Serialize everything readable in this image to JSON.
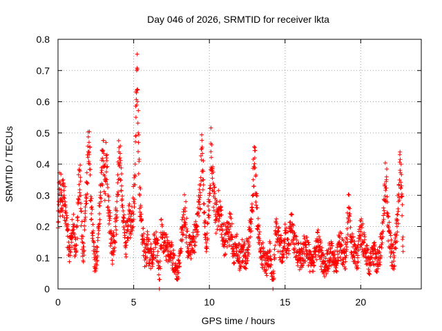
{
  "chart_data": {
    "type": "scatter",
    "title": "Day 046 of 2026, SRMTID for receiver lkta",
    "xlabel": "GPS time / hours",
    "ylabel": "SRMTID / TECUs",
    "xlim": [
      0,
      24.0
    ],
    "ylim": [
      0,
      0.8
    ],
    "grid": true,
    "marker": "plus",
    "color": "#ff0000",
    "x_ticks": [
      0,
      5,
      10,
      15,
      20
    ],
    "x_tick_labels": [
      "0",
      "5",
      "10",
      "15",
      "20"
    ],
    "y_ticks": [
      0,
      0.1,
      0.2,
      0.3,
      0.4,
      0.5,
      0.6,
      0.7,
      0.8
    ],
    "y_tick_labels": [
      "0",
      "0.1",
      "0.2",
      "0.3",
      "0.4",
      "0.5",
      "0.6",
      "0.7",
      "0.8"
    ],
    "series": [
      {
        "name": "SRMTID",
        "envelope_note": "dense per-epoch points; values below approximate the cloud read off the plot",
        "points": [
          [
            0.0,
            0.25
          ],
          [
            0.05,
            0.27
          ],
          [
            0.1,
            0.32
          ],
          [
            0.15,
            0.29
          ],
          [
            0.2,
            0.31
          ],
          [
            0.25,
            0.3
          ],
          [
            0.3,
            0.28
          ],
          [
            0.35,
            0.33
          ],
          [
            0.4,
            0.3
          ],
          [
            0.45,
            0.27
          ],
          [
            0.5,
            0.25
          ],
          [
            0.6,
            0.19
          ],
          [
            0.7,
            0.15
          ],
          [
            0.8,
            0.12
          ],
          [
            0.9,
            0.17
          ],
          [
            1.0,
            0.2
          ],
          [
            1.1,
            0.14
          ],
          [
            1.2,
            0.12
          ],
          [
            1.3,
            0.22
          ],
          [
            1.4,
            0.38
          ],
          [
            1.5,
            0.3
          ],
          [
            1.6,
            0.15
          ],
          [
            1.7,
            0.12
          ],
          [
            1.8,
            0.25
          ],
          [
            1.9,
            0.34
          ],
          [
            2.0,
            0.44
          ],
          [
            2.05,
            0.47
          ],
          [
            2.1,
            0.4
          ],
          [
            2.2,
            0.26
          ],
          [
            2.3,
            0.18
          ],
          [
            2.4,
            0.1
          ],
          [
            2.5,
            0.08
          ],
          [
            2.6,
            0.12
          ],
          [
            2.7,
            0.2
          ],
          [
            2.8,
            0.3
          ],
          [
            2.9,
            0.38
          ],
          [
            3.0,
            0.41
          ],
          [
            3.1,
            0.35
          ],
          [
            3.2,
            0.42
          ],
          [
            3.3,
            0.3
          ],
          [
            3.4,
            0.22
          ],
          [
            3.5,
            0.16
          ],
          [
            3.6,
            0.12
          ],
          [
            3.7,
            0.15
          ],
          [
            3.8,
            0.2
          ],
          [
            3.9,
            0.25
          ],
          [
            4.0,
            0.4
          ],
          [
            4.1,
            0.42
          ],
          [
            4.2,
            0.33
          ],
          [
            4.3,
            0.25
          ],
          [
            4.4,
            0.18
          ],
          [
            4.5,
            0.15
          ],
          [
            4.6,
            0.2
          ],
          [
            4.7,
            0.24
          ],
          [
            4.8,
            0.2
          ],
          [
            4.9,
            0.22
          ],
          [
            5.0,
            0.28
          ],
          [
            5.1,
            0.4
          ],
          [
            5.15,
            0.55
          ],
          [
            5.2,
            0.7
          ],
          [
            5.25,
            0.64
          ],
          [
            5.3,
            0.5
          ],
          [
            5.4,
            0.3
          ],
          [
            5.5,
            0.22
          ],
          [
            5.6,
            0.16
          ],
          [
            5.7,
            0.12
          ],
          [
            5.8,
            0.1
          ],
          [
            5.9,
            0.14
          ],
          [
            6.0,
            0.12
          ],
          [
            6.2,
            0.1
          ],
          [
            6.4,
            0.15
          ],
          [
            6.6,
            0.12
          ],
          [
            6.7,
            0.0
          ],
          [
            6.8,
            0.18
          ],
          [
            7.0,
            0.15
          ],
          [
            7.2,
            0.13
          ],
          [
            7.4,
            0.12
          ],
          [
            7.6,
            0.1
          ],
          [
            7.8,
            0.06
          ],
          [
            7.9,
            0.04
          ],
          [
            8.0,
            0.08
          ],
          [
            8.2,
            0.2
          ],
          [
            8.4,
            0.26
          ],
          [
            8.6,
            0.12
          ],
          [
            8.8,
            0.14
          ],
          [
            9.0,
            0.16
          ],
          [
            9.2,
            0.2
          ],
          [
            9.4,
            0.3
          ],
          [
            9.5,
            0.45
          ],
          [
            9.6,
            0.35
          ],
          [
            9.7,
            0.2
          ],
          [
            9.8,
            0.12
          ],
          [
            10.0,
            0.3
          ],
          [
            10.1,
            0.44
          ],
          [
            10.2,
            0.38
          ],
          [
            10.4,
            0.22
          ],
          [
            10.6,
            0.26
          ],
          [
            10.8,
            0.2
          ],
          [
            11.0,
            0.15
          ],
          [
            11.2,
            0.18
          ],
          [
            11.4,
            0.2
          ],
          [
            11.6,
            0.12
          ],
          [
            11.8,
            0.14
          ],
          [
            12.0,
            0.1
          ],
          [
            12.2,
            0.12
          ],
          [
            12.4,
            0.1
          ],
          [
            12.6,
            0.15
          ],
          [
            12.8,
            0.25
          ],
          [
            12.9,
            0.35
          ],
          [
            13.0,
            0.42
          ],
          [
            13.1,
            0.3
          ],
          [
            13.2,
            0.2
          ],
          [
            13.4,
            0.12
          ],
          [
            13.6,
            0.1
          ],
          [
            13.8,
            0.08
          ],
          [
            14.0,
            0.12
          ],
          [
            14.2,
            0.0
          ],
          [
            14.4,
            0.18
          ],
          [
            14.6,
            0.15
          ],
          [
            14.8,
            0.12
          ],
          [
            15.0,
            0.16
          ],
          [
            15.2,
            0.14
          ],
          [
            15.4,
            0.2
          ],
          [
            15.6,
            0.16
          ],
          [
            15.8,
            0.12
          ],
          [
            16.0,
            0.1
          ],
          [
            16.2,
            0.12
          ],
          [
            16.4,
            0.14
          ],
          [
            16.6,
            0.1
          ],
          [
            16.8,
            0.08
          ],
          [
            17.0,
            0.12
          ],
          [
            17.2,
            0.15
          ],
          [
            17.4,
            0.1
          ],
          [
            17.6,
            0.07
          ],
          [
            17.8,
            0.09
          ],
          [
            18.0,
            0.12
          ],
          [
            18.2,
            0.1
          ],
          [
            18.4,
            0.08
          ],
          [
            18.6,
            0.15
          ],
          [
            18.8,
            0.12
          ],
          [
            19.0,
            0.1
          ],
          [
            19.2,
            0.26
          ],
          [
            19.4,
            0.15
          ],
          [
            19.6,
            0.12
          ],
          [
            19.8,
            0.1
          ],
          [
            20.0,
            0.2
          ],
          [
            20.2,
            0.15
          ],
          [
            20.4,
            0.1
          ],
          [
            20.6,
            0.08
          ],
          [
            20.8,
            0.12
          ],
          [
            21.0,
            0.1
          ],
          [
            21.2,
            0.08
          ],
          [
            21.4,
            0.18
          ],
          [
            21.6,
            0.33
          ],
          [
            21.7,
            0.35
          ],
          [
            21.8,
            0.2
          ],
          [
            22.0,
            0.12
          ],
          [
            22.2,
            0.1
          ],
          [
            22.4,
            0.2
          ],
          [
            22.5,
            0.28
          ],
          [
            22.6,
            0.38
          ],
          [
            22.7,
            0.33
          ],
          [
            22.8,
            0.12
          ]
        ]
      }
    ]
  }
}
